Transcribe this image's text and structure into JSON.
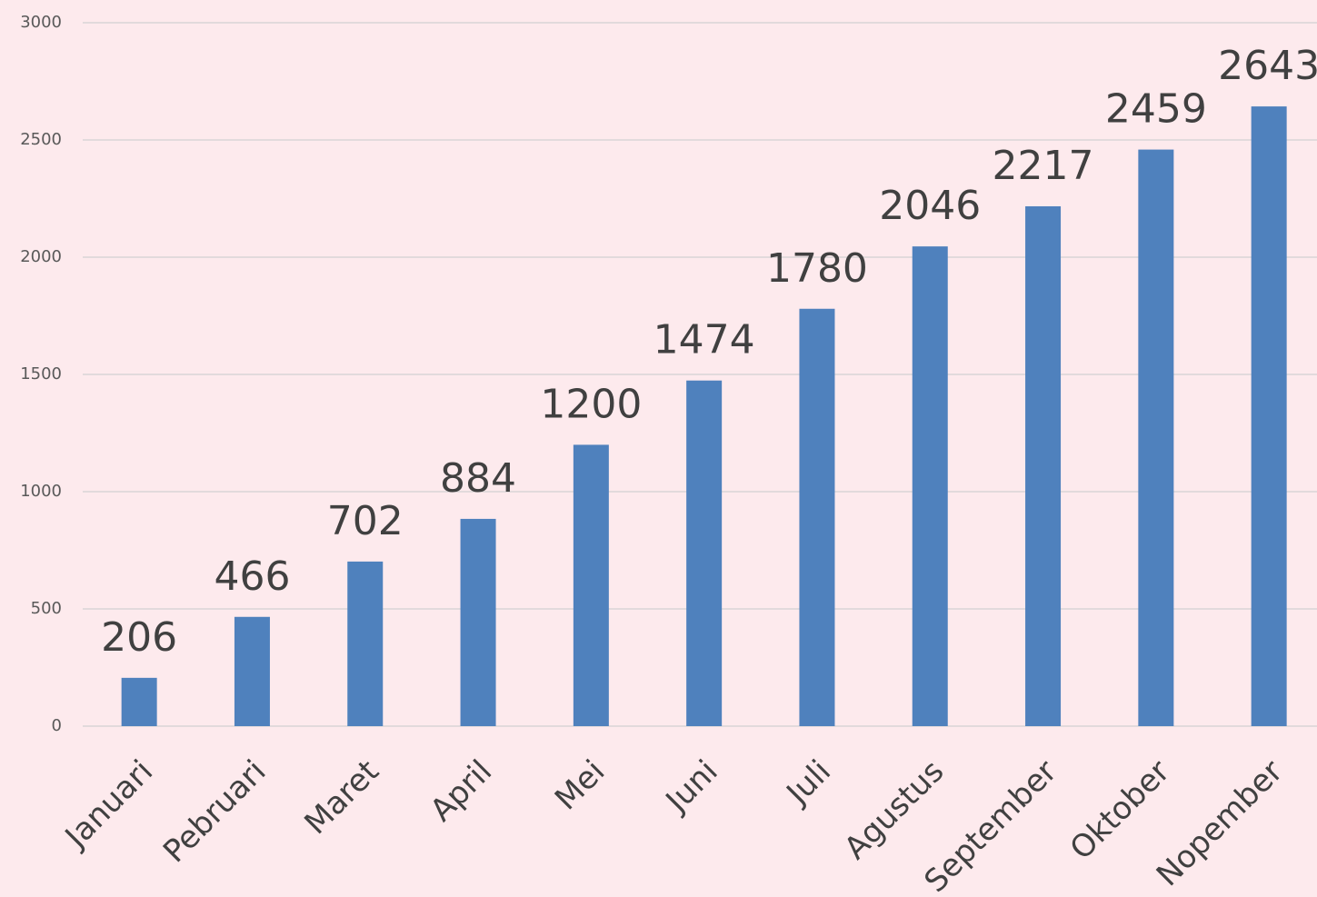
{
  "chart_data": {
    "type": "bar",
    "categories": [
      "Januari",
      "Pebruari",
      "Maret",
      "April",
      "Mei",
      "Juni",
      "Juli",
      "Agustus",
      "September",
      "Oktober",
      "Nopember"
    ],
    "values": [
      206,
      466,
      702,
      884,
      1200,
      1474,
      1780,
      2046,
      2217,
      2459,
      2643
    ],
    "color": "#4f81bd",
    "ylim": [
      0,
      3000
    ],
    "yticks": [
      0,
      500,
      1000,
      1500,
      2000,
      2500,
      3000
    ],
    "grid": true
  }
}
